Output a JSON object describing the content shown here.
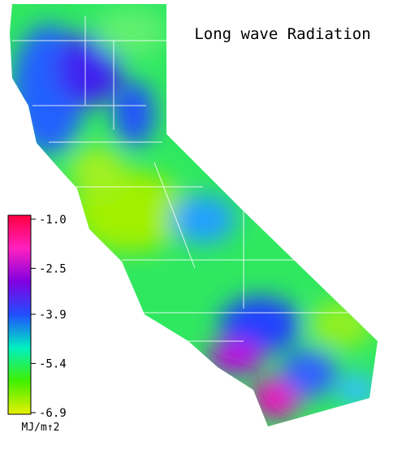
{
  "title": "Long wave Radiation",
  "colorbar": {
    "unit": "MJ/m↑2",
    "lim": [
      -6.95,
      -0.88
    ],
    "ticks": [
      {
        "value": -1.0,
        "label": "-1.0"
      },
      -2.5,
      -3.9,
      -5.4,
      -6.9
    ],
    "colors": [
      "#e8f000",
      "#40f000",
      "#00f0c0",
      "#2050ff",
      "#8000e0",
      "#ff20c0",
      "#ff0040"
    ]
  }
}
